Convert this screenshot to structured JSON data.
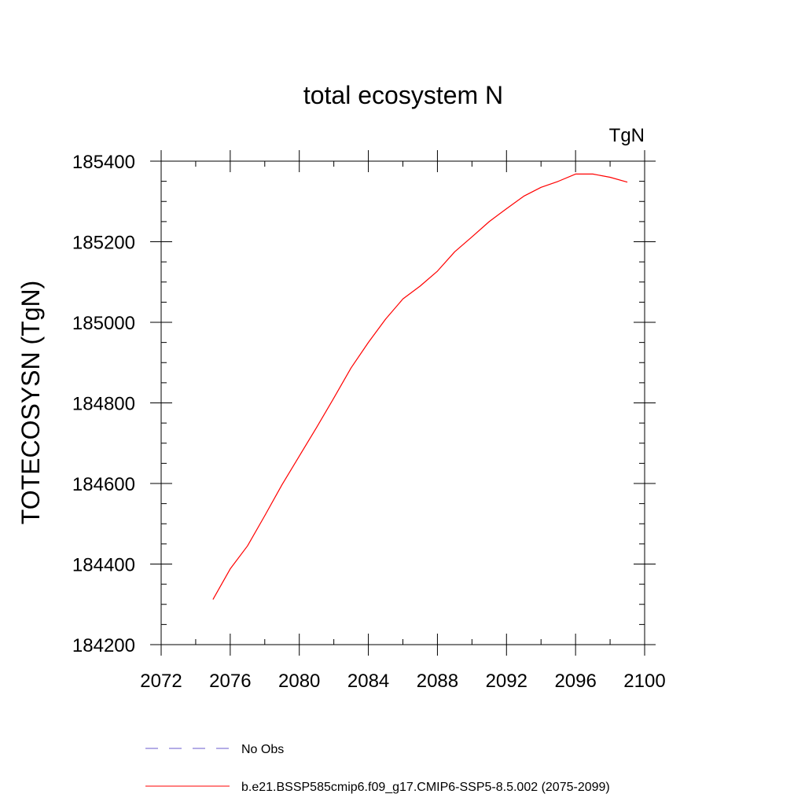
{
  "chart_data": {
    "type": "line",
    "title": "total ecosystem N",
    "units_label": "TgN",
    "ylabel": "TOTECOSYSN  (TgN)",
    "xlabel": "",
    "xlim": [
      2072,
      2100
    ],
    "ylim": [
      184200,
      185400
    ],
    "x_ticks": [
      2072,
      2076,
      2080,
      2084,
      2088,
      2092,
      2096,
      2100
    ],
    "y_ticks": [
      184200,
      184400,
      184600,
      184800,
      185000,
      185200,
      185400
    ],
    "grid": false,
    "legend_position": "bottom",
    "series": [
      {
        "name": "b.e21.BSSP585cmip6.f09_g17.CMIP6-SSP5-8.5.002 (2075-2099)",
        "color": "#ff0000",
        "dash": "solid",
        "x": [
          2075,
          2076,
          2077,
          2078,
          2079,
          2080,
          2081,
          2082,
          2083,
          2084,
          2085,
          2086,
          2087,
          2088,
          2089,
          2090,
          2091,
          2092,
          2093,
          2094,
          2095,
          2096,
          2097,
          2098,
          2099
        ],
        "y": [
          184312,
          184388,
          184445,
          184520,
          184597,
          184668,
          184739,
          184812,
          184887,
          184950,
          185008,
          185058,
          185090,
          185127,
          185175,
          185212,
          185250,
          185282,
          185313,
          185335,
          185350,
          185368,
          185368,
          185360,
          185348
        ]
      }
    ],
    "legend": [
      {
        "label": "No Obs",
        "color": "#6a5acd",
        "dash": "dashed"
      },
      {
        "label": "b.e21.BSSP585cmip6.f09_g17.CMIP6-SSP5-8.5.002 (2075-2099)",
        "color": "#ff0000",
        "dash": "solid"
      }
    ]
  }
}
